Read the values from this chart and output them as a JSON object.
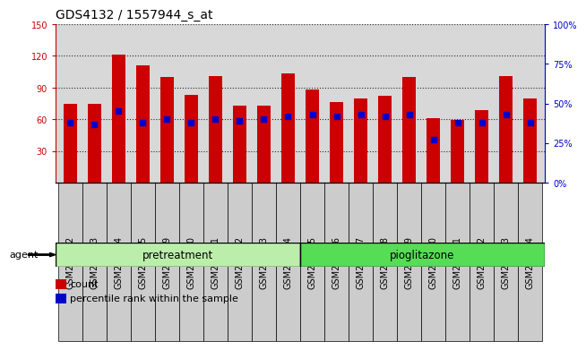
{
  "title": "GDS4132 / 1557944_s_at",
  "samples": [
    "GSM201542",
    "GSM201543",
    "GSM201544",
    "GSM201545",
    "GSM201829",
    "GSM201830",
    "GSM201831",
    "GSM201832",
    "GSM201833",
    "GSM201834",
    "GSM201835",
    "GSM201836",
    "GSM201837",
    "GSM201838",
    "GSM201839",
    "GSM201840",
    "GSM201841",
    "GSM201842",
    "GSM201843",
    "GSM201844"
  ],
  "count_values": [
    75,
    75,
    121,
    111,
    100,
    83,
    101,
    73,
    73,
    103,
    88,
    76,
    80,
    82,
    100,
    61,
    59,
    69,
    101,
    80
  ],
  "percentile_values": [
    38,
    37,
    45,
    38,
    40,
    38,
    40,
    39,
    40,
    42,
    43,
    42,
    43,
    42,
    43,
    27,
    38,
    38,
    43,
    38
  ],
  "pretreatment_count": 10,
  "pioglitazone_count": 10,
  "pretreatment_label": "pretreatment",
  "pioglitazone_label": "pioglitazone",
  "agent_label": "agent",
  "ylim_left": [
    0,
    150
  ],
  "ylim_right": [
    0,
    100
  ],
  "yticks_left": [
    30,
    60,
    90,
    120,
    150
  ],
  "yticks_right": [
    0,
    25,
    50,
    75,
    100
  ],
  "bar_color": "#cc0000",
  "dot_color": "#0000cc",
  "pretreatment_bg": "#bbeeaa",
  "pioglitazone_bg": "#55dd55",
  "bar_width": 0.55,
  "legend_count_label": "count",
  "legend_percentile_label": "percentile rank within the sample",
  "title_fontsize": 10,
  "axis_fontsize": 8,
  "tick_fontsize": 7,
  "group_label_fontsize": 8.5,
  "plot_bg": "#d8d8d8",
  "xtick_bg": "#cccccc"
}
